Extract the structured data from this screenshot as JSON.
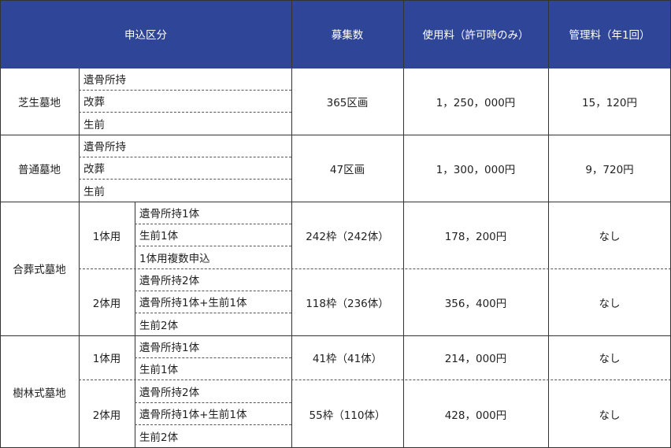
{
  "header": {
    "category": "申込区分",
    "recruit": "募集数",
    "fee": "使用料（許可時のみ）",
    "mgmt": "管理料（年1回）"
  },
  "rows": {
    "shibafu": {
      "name": "芝生墓地",
      "types": [
        "遺骨所持",
        "改葬",
        "生前"
      ],
      "recruit": "365区画",
      "fee": "1，250，000円",
      "mgmt": "15，120円"
    },
    "futsu": {
      "name": "普通墓地",
      "types": [
        "遺骨所持",
        "改葬",
        "生前"
      ],
      "recruit": "47区画",
      "fee": "1，300，000円",
      "mgmt": "9，720円"
    },
    "gassou": {
      "name": "合葬式墓地",
      "one": {
        "label": "1体用",
        "types": [
          "遺骨所持1体",
          "生前1体",
          "1体用複数申込"
        ],
        "recruit": "242枠（242体）",
        "fee": "178，200円",
        "mgmt": "なし"
      },
      "two": {
        "label": "2体用",
        "types": [
          "遺骨所持2体",
          "遺骨所持1体+生前1体",
          "生前2体"
        ],
        "recruit": "118枠（236体）",
        "fee": "356，400円",
        "mgmt": "なし"
      }
    },
    "jurin": {
      "name": "樹林式墓地",
      "one": {
        "label": "1体用",
        "types": [
          "遺骨所持1体",
          "生前1体"
        ],
        "recruit": "41枠（41体）",
        "fee": "214，000円",
        "mgmt": "なし"
      },
      "two": {
        "label": "2体用",
        "types": [
          "遺骨所持2体",
          "遺骨所持1体+生前1体",
          "生前2体"
        ],
        "recruit": "55枠（110体）",
        "fee": "428，000円",
        "mgmt": "なし"
      }
    }
  }
}
